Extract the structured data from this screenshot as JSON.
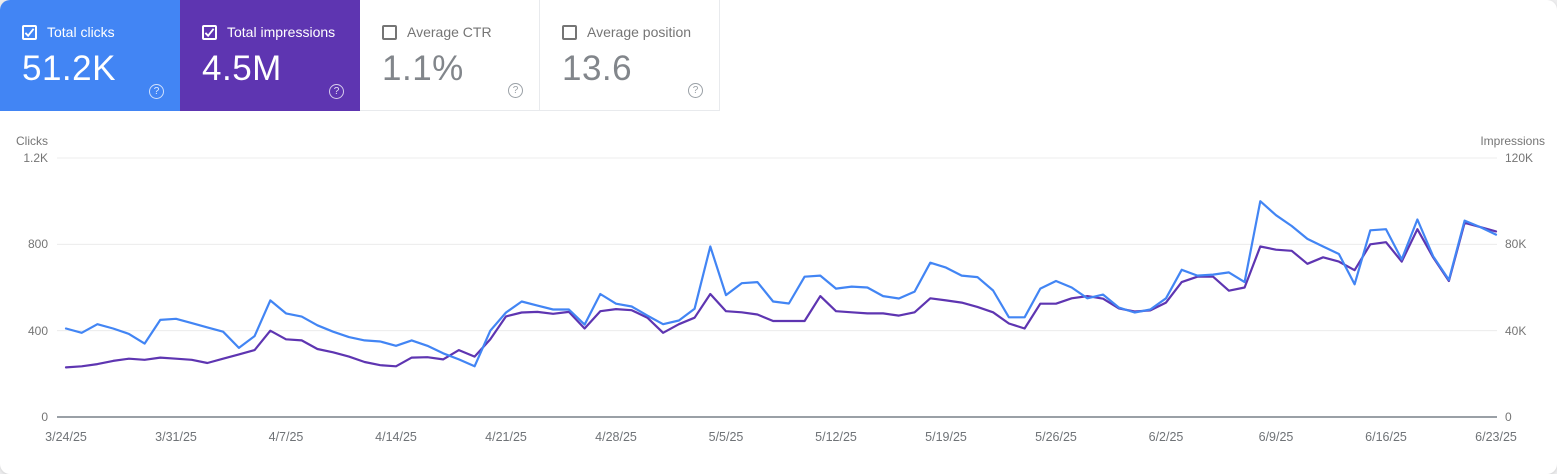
{
  "app": "Search Console performance report",
  "colors": {
    "clicks_accent": "#4285f4",
    "impressions_accent": "#5e35b1",
    "grid_line": "#ececec",
    "axis_line": "#9aa0a6",
    "muted_text": "#757575"
  },
  "cards": [
    {
      "label": "Total clicks",
      "value": "51.2K",
      "selected": true
    },
    {
      "label": "Total impressions",
      "value": "4.5M",
      "selected": true
    },
    {
      "label": "Average CTR",
      "value": "1.1%",
      "selected": false
    },
    {
      "label": "Average position",
      "value": "13.6",
      "selected": false
    }
  ],
  "chart_data": {
    "type": "line",
    "x_dates": [
      "3/24/25",
      "3/31/25",
      "4/7/25",
      "4/14/25",
      "4/21/25",
      "4/28/25",
      "5/5/25",
      "5/12/25",
      "5/19/25",
      "5/26/25",
      "6/2/25",
      "6/9/25",
      "6/16/25",
      "6/23/25"
    ],
    "points_per_series": 92,
    "left_axis": {
      "title": "Clicks",
      "ticks": [
        "1.2K",
        "800",
        "400",
        "0"
      ],
      "tick_values": [
        1200,
        800,
        400,
        0
      ],
      "max": 1200
    },
    "right_axis": {
      "title": "Impressions",
      "ticks": [
        "120K",
        "80K",
        "40K",
        "0"
      ],
      "tick_values": [
        120000,
        80000,
        40000,
        0
      ],
      "max": 120000
    },
    "grid": true,
    "legend_position": "none",
    "series": [
      {
        "name": "Total clicks",
        "axis": "left",
        "color": "#4285f4",
        "values": [
          410,
          390,
          430,
          410,
          385,
          340,
          450,
          455,
          435,
          415,
          395,
          320,
          375,
          540,
          480,
          465,
          425,
          395,
          370,
          355,
          350,
          330,
          355,
          330,
          295,
          267,
          235,
          400,
          484,
          535,
          516,
          498,
          498,
          428,
          570,
          525,
          512,
          470,
          430,
          447,
          502,
          790,
          565,
          620,
          625,
          535,
          526,
          650,
          655,
          595,
          604,
          600,
          560,
          549,
          581,
          715,
          692,
          655,
          648,
          586,
          462,
          462,
          595,
          630,
          600,
          550,
          567,
          507,
          484,
          498,
          550,
          682,
          655,
          660,
          670,
          625,
          1000,
          935,
          885,
          825,
          790,
          755,
          615,
          865,
          870,
          730,
          915,
          745,
          635,
          910,
          880,
          845
        ]
      },
      {
        "name": "Total impressions",
        "axis": "right",
        "color": "#5e35b1",
        "values": [
          23000,
          23500,
          24500,
          26000,
          27000,
          26500,
          27500,
          27000,
          26500,
          25000,
          27000,
          29000,
          31000,
          40000,
          36000,
          35500,
          31500,
          30000,
          28000,
          25500,
          24000,
          23500,
          27500,
          27700,
          26700,
          31000,
          28000,
          36000,
          46600,
          48400,
          48700,
          47800,
          48700,
          41000,
          49000,
          50000,
          49500,
          46000,
          39000,
          43000,
          46000,
          57000,
          49000,
          48500,
          47500,
          44500,
          44500,
          44500,
          56000,
          49000,
          48500,
          48000,
          48000,
          47000,
          48500,
          55000,
          54000,
          53000,
          51000,
          48500,
          43300,
          41000,
          52500,
          52500,
          55000,
          56000,
          54800,
          50300,
          48900,
          49400,
          53000,
          62500,
          65000,
          65000,
          58500,
          60000,
          79000,
          77500,
          77000,
          71000,
          74000,
          72000,
          68000,
          80000,
          81000,
          72000,
          87000,
          74000,
          63000,
          90000,
          88000,
          86000
        ]
      }
    ]
  }
}
